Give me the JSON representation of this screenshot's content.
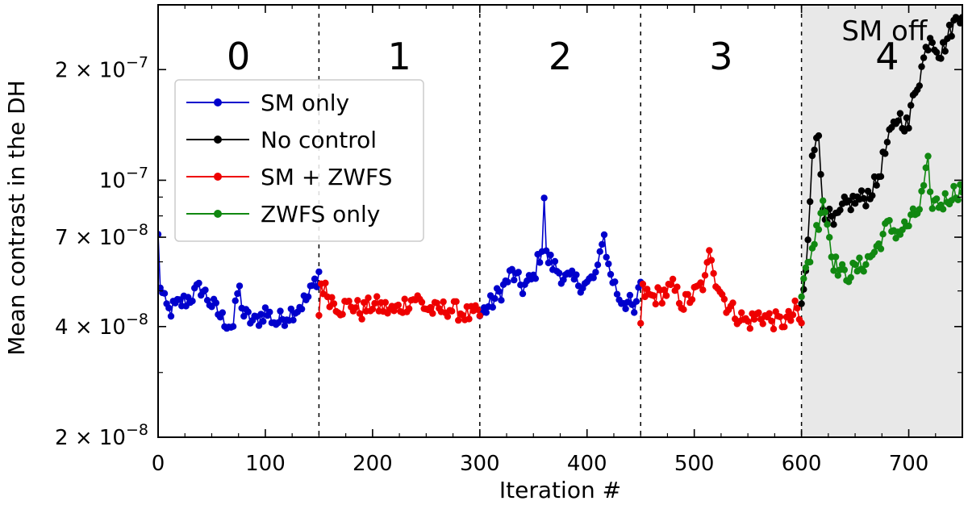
{
  "chart_data": {
    "type": "line",
    "x_scale": "linear",
    "y_scale": "log",
    "xlabel": "Iteration #",
    "ylabel": "Mean contrast in the DH",
    "xlim": [
      0,
      750
    ],
    "ylim": [
      2e-08,
      3e-07
    ],
    "xticks": [
      0,
      100,
      200,
      300,
      400,
      500,
      600,
      700
    ],
    "yticks": [
      {
        "value": 2e-08,
        "mant": "2 × 10",
        "exp": "−8"
      },
      {
        "value": 4e-08,
        "mant": "4 × 10",
        "exp": "−8"
      },
      {
        "value": 7e-08,
        "mant": "7 × 10",
        "exp": "−8"
      },
      {
        "value": 1e-07,
        "mant": "10",
        "exp": "−7"
      },
      {
        "value": 2e-07,
        "mant": "2 × 10",
        "exp": "−7"
      }
    ],
    "phase_boundaries": [
      150,
      300,
      450,
      600
    ],
    "phases": [
      {
        "label": "0",
        "x": 75
      },
      {
        "label": "1",
        "x": 225
      },
      {
        "label": "2",
        "x": 375
      },
      {
        "label": "3",
        "x": 525
      },
      {
        "label": "4",
        "x": 680
      }
    ],
    "shaded_region": {
      "from": 600,
      "to": 750,
      "label": "SM off",
      "color": "#e8e8e8"
    },
    "legend": [
      {
        "name": "SM only",
        "color": "#0000cc"
      },
      {
        "name": "No control",
        "color": "#000000"
      },
      {
        "name": "SM + ZWFS",
        "color": "#ee0000"
      },
      {
        "name": "ZWFS only",
        "color": "#118811"
      }
    ],
    "series": [
      {
        "name": "SM only",
        "color": "#0000cc",
        "segments": [
          {
            "x_start": 0,
            "x_end": 150,
            "anchors": [
              [
                0,
                7e-08
              ],
              [
                1,
                5.4e-08
              ],
              [
                5,
                4.7e-08
              ],
              [
                10,
                4.4e-08
              ],
              [
                20,
                4.6e-08
              ],
              [
                30,
                4.8e-08
              ],
              [
                40,
                5.1e-08
              ],
              [
                50,
                4.6e-08
              ],
              [
                60,
                4.2e-08
              ],
              [
                70,
                4e-08
              ],
              [
                75,
                5.2e-08
              ],
              [
                80,
                4.3e-08
              ],
              [
                90,
                4.1e-08
              ],
              [
                100,
                4.4e-08
              ],
              [
                110,
                4.1e-08
              ],
              [
                120,
                4.3e-08
              ],
              [
                130,
                4.5e-08
              ],
              [
                140,
                4.8e-08
              ],
              [
                150,
                5.6e-08
              ]
            ]
          },
          {
            "x_start": 300,
            "x_end": 450,
            "anchors": [
              [
                300,
                4.3e-08
              ],
              [
                310,
                4.6e-08
              ],
              [
                320,
                5e-08
              ],
              [
                330,
                5.6e-08
              ],
              [
                340,
                5.1e-08
              ],
              [
                350,
                5.4e-08
              ],
              [
                358,
                6.6e-08
              ],
              [
                360,
                9e-08
              ],
              [
                362,
                6.2e-08
              ],
              [
                370,
                5.8e-08
              ],
              [
                380,
                5.4e-08
              ],
              [
                390,
                5.3e-08
              ],
              [
                400,
                5.2e-08
              ],
              [
                410,
                5.6e-08
              ],
              [
                415,
                7.4e-08
              ],
              [
                420,
                5.8e-08
              ],
              [
                430,
                4.8e-08
              ],
              [
                440,
                4.6e-08
              ],
              [
                445,
                4.3e-08
              ],
              [
                450,
                5.4e-08
              ]
            ]
          }
        ]
      },
      {
        "name": "SM + ZWFS",
        "color": "#ee0000",
        "segments": [
          {
            "x_start": 150,
            "x_end": 300,
            "anchors": [
              [
                151,
                5.3e-08
              ],
              [
                160,
                4.8e-08
              ],
              [
                170,
                4.5e-08
              ],
              [
                180,
                4.6e-08
              ],
              [
                190,
                4.4e-08
              ],
              [
                200,
                4.6e-08
              ],
              [
                210,
                4.5e-08
              ],
              [
                220,
                4.4e-08
              ],
              [
                230,
                4.6e-08
              ],
              [
                240,
                4.8e-08
              ],
              [
                250,
                4.5e-08
              ],
              [
                260,
                4.4e-08
              ],
              [
                270,
                4.5e-08
              ],
              [
                280,
                4.4e-08
              ],
              [
                290,
                4.3e-08
              ],
              [
                300,
                4.3e-08
              ]
            ]
          },
          {
            "x_start": 450,
            "x_end": 600,
            "anchors": [
              [
                451,
                5e-08
              ],
              [
                460,
                4.8e-08
              ],
              [
                470,
                4.9e-08
              ],
              [
                480,
                5.1e-08
              ],
              [
                490,
                4.6e-08
              ],
              [
                500,
                4.9e-08
              ],
              [
                510,
                5.3e-08
              ],
              [
                515,
                6.5e-08
              ],
              [
                520,
                5.4e-08
              ],
              [
                530,
                4.6e-08
              ],
              [
                540,
                4.3e-08
              ],
              [
                550,
                4.1e-08
              ],
              [
                560,
                4.3e-08
              ],
              [
                570,
                4.2e-08
              ],
              [
                580,
                4.1e-08
              ],
              [
                590,
                4.2e-08
              ],
              [
                595,
                4.5e-08
              ],
              [
                600,
                4e-08
              ]
            ]
          }
        ]
      },
      {
        "name": "No control",
        "color": "#000000",
        "segments": [
          {
            "x_start": 600,
            "x_end": 750,
            "anchors": [
              [
                600,
                4.6e-08
              ],
              [
                605,
                5.8e-08
              ],
              [
                610,
                1.2e-07
              ],
              [
                615,
                1.4e-07
              ],
              [
                620,
                8.5e-08
              ],
              [
                630,
                7.5e-08
              ],
              [
                640,
                8.5e-08
              ],
              [
                650,
                8.8e-08
              ],
              [
                660,
                9e-08
              ],
              [
                670,
                9.8e-08
              ],
              [
                680,
                1.25e-07
              ],
              [
                690,
                1.5e-07
              ],
              [
                700,
                1.4e-07
              ],
              [
                705,
                1.75e-07
              ],
              [
                710,
                1.9e-07
              ],
              [
                715,
                2.2e-07
              ],
              [
                720,
                2.5e-07
              ],
              [
                730,
                2.2e-07
              ],
              [
                740,
                2.6e-07
              ],
              [
                750,
                2.9e-07
              ]
            ]
          }
        ]
      },
      {
        "name": "ZWFS only",
        "color": "#118811",
        "segments": [
          {
            "x_start": 600,
            "x_end": 750,
            "anchors": [
              [
                600,
                5e-08
              ],
              [
                608,
                6.2e-08
              ],
              [
                615,
                7.5e-08
              ],
              [
                620,
                9e-08
              ],
              [
                630,
                6e-08
              ],
              [
                640,
                5.5e-08
              ],
              [
                650,
                5.7e-08
              ],
              [
                660,
                6e-08
              ],
              [
                670,
                6.5e-08
              ],
              [
                680,
                7.5e-08
              ],
              [
                690,
                7.2e-08
              ],
              [
                700,
                7.6e-08
              ],
              [
                710,
                8.4e-08
              ],
              [
                718,
                1.1e-07
              ],
              [
                720,
                8.8e-08
              ],
              [
                730,
                8.6e-08
              ],
              [
                740,
                9.2e-08
              ],
              [
                750,
                9.5e-08
              ]
            ]
          }
        ]
      }
    ]
  }
}
